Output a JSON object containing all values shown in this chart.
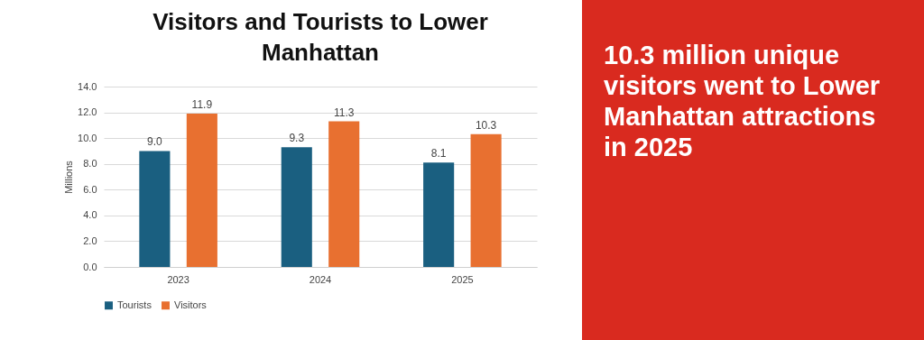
{
  "chart_data": {
    "type": "bar",
    "title": "Visitors and Tourists to Lower Manhattan",
    "ylabel": "Millions",
    "categories": [
      "2023",
      "2024",
      "2025"
    ],
    "series": [
      {
        "name": "Tourists",
        "color": "#1a5f80",
        "values": [
          9.0,
          9.3,
          8.1
        ],
        "value_labels": [
          "9.0",
          "9.3",
          "8.1"
        ]
      },
      {
        "name": "Visitors",
        "color": "#e87030",
        "values": [
          11.9,
          11.3,
          10.3
        ],
        "value_labels": [
          "11.9",
          "11.3",
          "10.3"
        ]
      }
    ],
    "ylim": [
      0,
      14
    ],
    "yticks": [
      {
        "value": 0,
        "label": "0.0"
      },
      {
        "value": 2,
        "label": "2.0"
      },
      {
        "value": 4,
        "label": "4.0"
      },
      {
        "value": 6,
        "label": "6.0"
      },
      {
        "value": 8,
        "label": "8.0"
      },
      {
        "value": 10,
        "label": "10.0"
      },
      {
        "value": 12,
        "label": "12.0"
      },
      {
        "value": 14,
        "label": "14.0"
      }
    ],
    "grid": "y",
    "legend": "bottom",
    "annotations": [
      "10.3 million unique visitors went to Lower Manhattan attractions in 2025"
    ]
  }
}
